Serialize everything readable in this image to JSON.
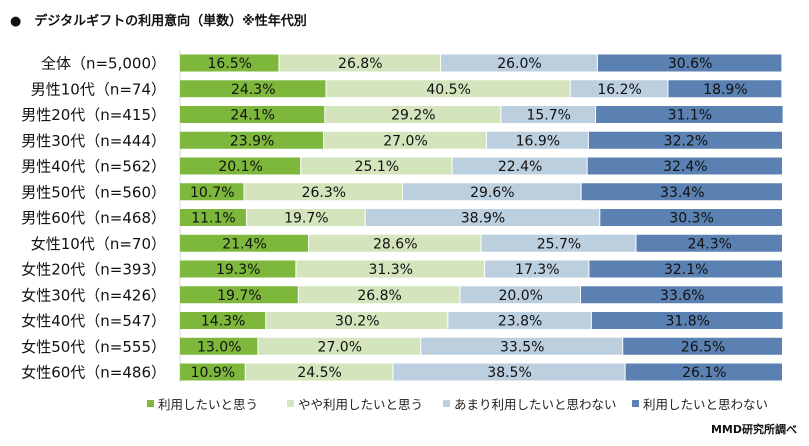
{
  "title": "●　デジタルギフトの利用意向（単数）※性年代別",
  "source": "MMD研究所調べ",
  "chart_data": {
    "type": "bar",
    "orientation": "horizontal",
    "stacked": "percent",
    "title": "デジタルギフトの利用意向（単数）※性年代別",
    "categories": [
      "全体（n=5,000）",
      "男性10代（n=74）",
      "男性20代（n=415）",
      "男性30代（n=444）",
      "男性40代（n=562）",
      "男性50代（n=560）",
      "男性60代（n=468）",
      "女性10代（n=70）",
      "女性20代（n=393）",
      "女性30代（n=426）",
      "女性40代（n=547）",
      "女性50代（n=555）",
      "女性60代（n=486）"
    ],
    "series": [
      {
        "name": "利用したいと思う",
        "color": "#7db83c",
        "values": [
          16.5,
          24.3,
          24.1,
          23.9,
          20.1,
          10.7,
          11.1,
          21.4,
          19.3,
          19.7,
          14.3,
          13.0,
          10.9
        ]
      },
      {
        "name": "やや利用したいと思う",
        "color": "#d4e5bd",
        "values": [
          26.8,
          40.5,
          29.2,
          27.0,
          25.1,
          26.3,
          19.7,
          28.6,
          31.3,
          26.8,
          30.2,
          27.0,
          24.5
        ]
      },
      {
        "name": "あまり利用したいと思わない",
        "color": "#bccfdf",
        "values": [
          26.0,
          16.2,
          15.7,
          16.9,
          22.4,
          29.6,
          38.9,
          25.7,
          17.3,
          20.0,
          23.8,
          33.5,
          38.5
        ]
      },
      {
        "name": "利用したいと思わない",
        "color": "#5b80b2",
        "values": [
          30.6,
          18.9,
          31.1,
          32.2,
          32.4,
          33.4,
          30.3,
          24.3,
          32.1,
          33.6,
          31.8,
          26.5,
          26.1
        ]
      }
    ],
    "xlim": [
      0,
      100
    ],
    "data_labels": "percent with one decimal",
    "legend": "bottom",
    "grid": false
  }
}
